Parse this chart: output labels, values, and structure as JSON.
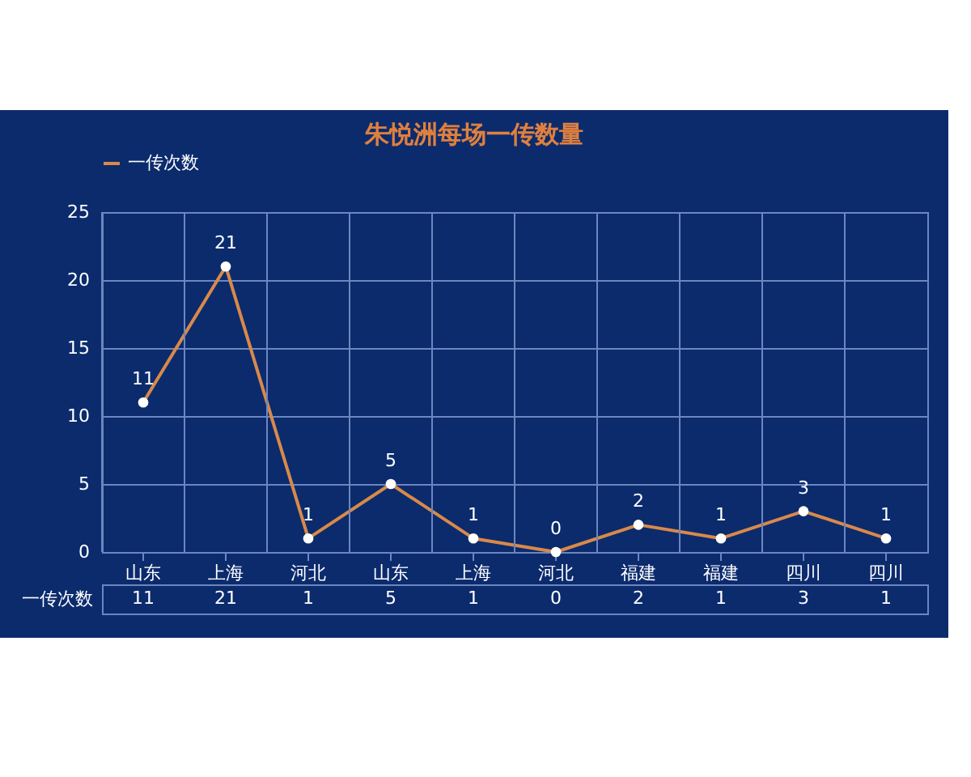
{
  "chart_data": {
    "type": "line",
    "title": "朱悦洲每场一传数量",
    "categories": [
      "山东",
      "上海",
      "河北",
      "山东",
      "上海",
      "河北",
      "福建",
      "福建",
      "四川",
      "四川"
    ],
    "series": [
      {
        "name": "一传次数",
        "color": "#d9894a",
        "values": [
          11,
          21,
          1,
          5,
          1,
          0,
          2,
          1,
          3,
          1
        ],
        "value_labels": [
          "11",
          "21",
          "1",
          "5",
          "1",
          "0",
          "2",
          "1",
          "3",
          "1"
        ]
      }
    ],
    "annotations": [
      "11",
      "21",
      "1",
      "5",
      "1",
      "0",
      "2",
      "1",
      "3",
      "1"
    ],
    "ylim": [
      0,
      25
    ],
    "yticks": [
      0,
      5,
      10,
      15,
      20,
      25
    ],
    "grid": true,
    "legend": "top",
    "marker": "circle"
  }
}
